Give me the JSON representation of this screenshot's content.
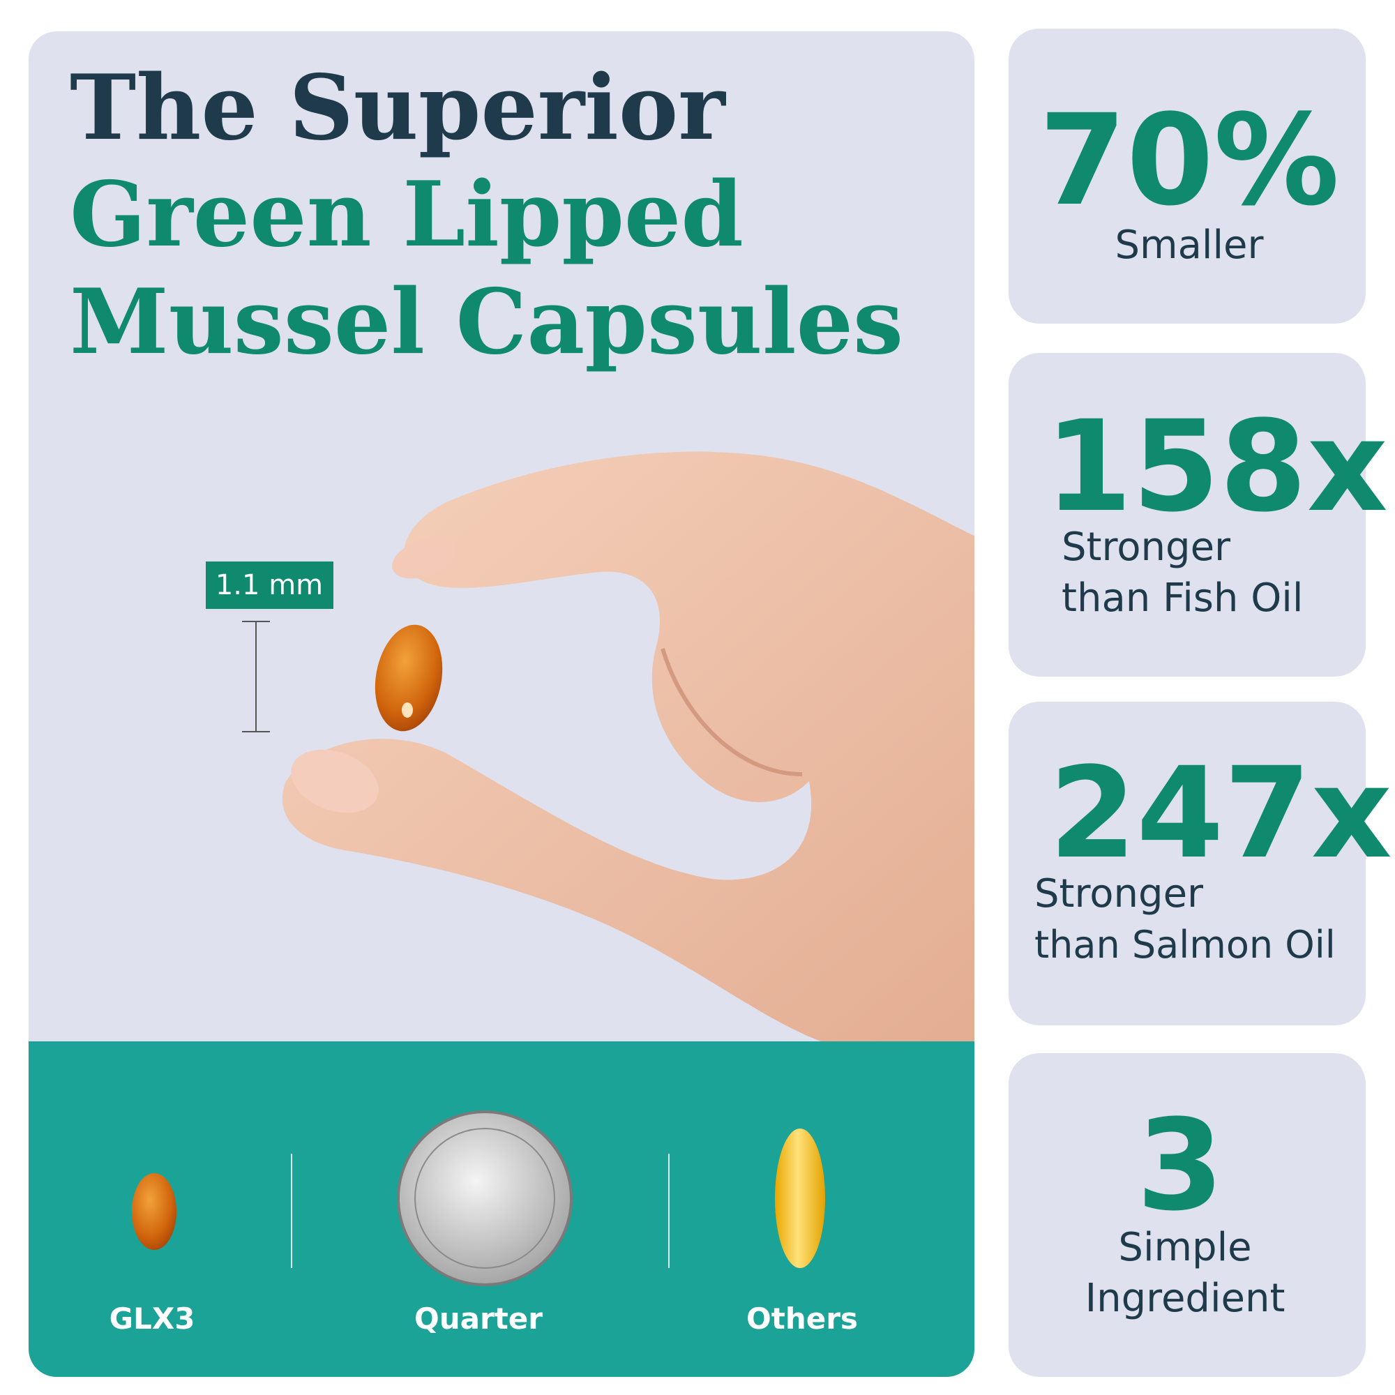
{
  "title": {
    "lines": [
      "The Superior",
      "Green Lipped",
      "Mussel Capsules"
    ]
  },
  "dimension_label": "1.1 mm",
  "comparison": [
    "GLX3",
    "Quarter",
    "Others"
  ],
  "stats": [
    {
      "value": "70%",
      "label_lines": [
        "Smaller"
      ]
    },
    {
      "value": "158x",
      "label_lines": [
        "Stronger",
        "than Fish Oil"
      ]
    },
    {
      "value": "247x",
      "label_lines": [
        "Stronger",
        "than Salmon Oil"
      ]
    },
    {
      "value": "3",
      "label_lines": [
        "Simple",
        "Ingredient"
      ]
    }
  ]
}
